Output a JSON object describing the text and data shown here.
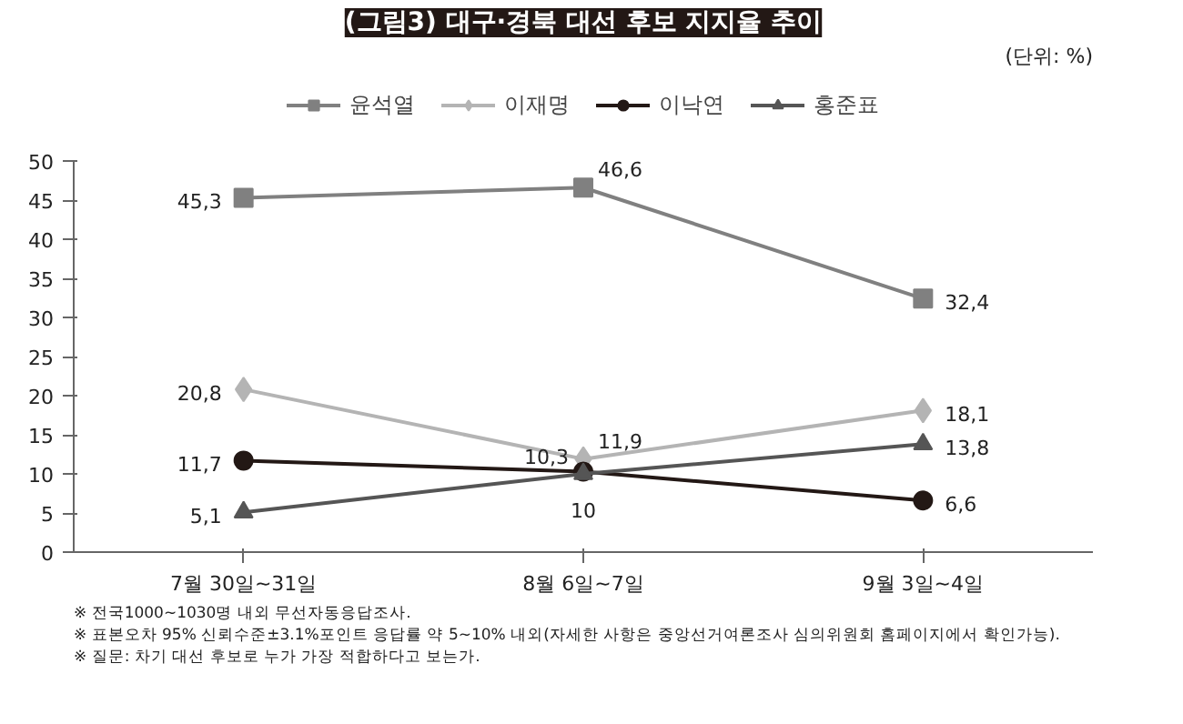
{
  "chart_data": {
    "type": "line",
    "title": "(그림3) 대구·경북 대선 후보 지지율 추이",
    "categories": [
      "7월 30일~31일",
      "8월 6일~7일",
      "9월 3일~4일"
    ],
    "series": [
      {
        "name": "윤석열",
        "color": "#808080",
        "marker": "square",
        "values": [
          45.3,
          46.6,
          32.4
        ],
        "value_labels": [
          "45,3",
          "46,6",
          "32,4"
        ]
      },
      {
        "name": "이재명",
        "color": "#b4b4b4",
        "marker": "diamond",
        "values": [
          20.8,
          11.9,
          18.1
        ],
        "value_labels": [
          "20,8",
          "11,9",
          "18,1"
        ]
      },
      {
        "name": "이낙연",
        "color": "#231815",
        "marker": "circle",
        "values": [
          11.7,
          10.3,
          6.6
        ],
        "value_labels": [
          "11,7",
          "10,3",
          "6,6"
        ]
      },
      {
        "name": "홍준표",
        "color": "#555555",
        "marker": "triangle",
        "values": [
          5.1,
          10,
          13.8
        ],
        "value_labels": [
          "5,1",
          "10",
          "13,8"
        ]
      }
    ],
    "ylim": [
      0,
      50
    ],
    "yticks": [
      0,
      5,
      10,
      15,
      20,
      25,
      30,
      35,
      40,
      45,
      50
    ],
    "grid": false,
    "legend": "top",
    "annotations": [
      "(단위: %)",
      "※ 전국1000~1030명 내외 무선자동응답조사.",
      "※ 표본오차 95% 신뢰수준±3.1%포인트 응답률 약 5~10% 내외(자세한 사항은 중앙선거여론조사 심의위원회 홈페이지에서 확인가능).",
      "※ 질문: 차기 대선 후보로 누가 가장 적합하다고 보는가."
    ]
  }
}
